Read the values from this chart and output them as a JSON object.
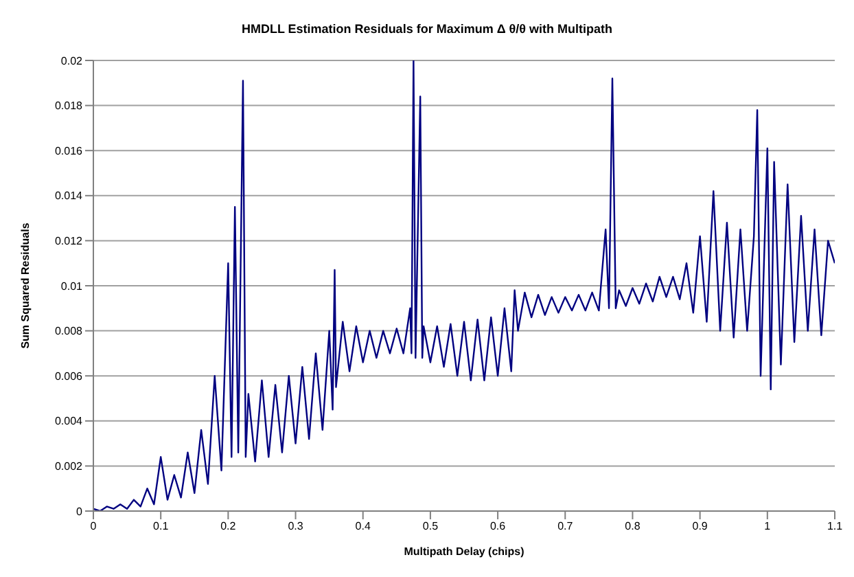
{
  "chart_data": {
    "type": "line",
    "title": "HMDLL Estimation Residuals for Maximum Δ θ/θ with Multipath",
    "xlabel": "Multipath Delay (chips)",
    "ylabel": "Sum Squared Residuals",
    "xlim": [
      0,
      1.1
    ],
    "xticks": [
      0,
      0.1,
      0.2,
      0.3,
      0.4,
      0.5,
      0.6,
      0.7,
      0.8,
      0.9,
      1,
      1.1
    ],
    "ylim": [
      0,
      0.02
    ],
    "yticks": [
      0,
      0.002,
      0.004,
      0.006,
      0.008,
      0.01,
      0.012,
      0.014,
      0.016,
      0.018,
      0.02
    ],
    "grid": "y",
    "marker": "none",
    "line_style": "solid",
    "series": [
      {
        "color": "#000080",
        "x": [
          0,
          0.01,
          0.02,
          0.03,
          0.04,
          0.05,
          0.06,
          0.07,
          0.08,
          0.09,
          0.1,
          0.11,
          0.12,
          0.13,
          0.14,
          0.15,
          0.16,
          0.17,
          0.18,
          0.19,
          0.2,
          0.205,
          0.21,
          0.215,
          0.222,
          0.226,
          0.23,
          0.24,
          0.25,
          0.26,
          0.27,
          0.28,
          0.29,
          0.3,
          0.31,
          0.32,
          0.33,
          0.34,
          0.35,
          0.355,
          0.358,
          0.36,
          0.37,
          0.38,
          0.39,
          0.4,
          0.41,
          0.42,
          0.43,
          0.44,
          0.45,
          0.46,
          0.47,
          0.472,
          0.475,
          0.478,
          0.485,
          0.488,
          0.49,
          0.5,
          0.51,
          0.52,
          0.53,
          0.54,
          0.55,
          0.56,
          0.57,
          0.58,
          0.59,
          0.6,
          0.61,
          0.62,
          0.625,
          0.63,
          0.64,
          0.65,
          0.66,
          0.67,
          0.68,
          0.69,
          0.7,
          0.71,
          0.72,
          0.73,
          0.74,
          0.75,
          0.76,
          0.765,
          0.77,
          0.775,
          0.78,
          0.79,
          0.8,
          0.81,
          0.82,
          0.83,
          0.84,
          0.85,
          0.86,
          0.87,
          0.88,
          0.89,
          0.9,
          0.91,
          0.92,
          0.93,
          0.94,
          0.95,
          0.96,
          0.97,
          0.98,
          0.985,
          0.99,
          1,
          1.005,
          1.01,
          1.02,
          1.03,
          1.04,
          1.05,
          1.06,
          1.07,
          1.08,
          1.09,
          1.1
        ],
        "values": [
          0.0001,
          0,
          0.0002,
          0.0001,
          0.0003,
          0.0001,
          0.0005,
          0.0002,
          0.001,
          0.0003,
          0.0024,
          0.0005,
          0.0016,
          0.0006,
          0.0026,
          0.0008,
          0.0036,
          0.0012,
          0.006,
          0.0018,
          0.011,
          0.0024,
          0.0135,
          0.0026,
          0.0191,
          0.0024,
          0.0052,
          0.0022,
          0.0058,
          0.0024,
          0.0056,
          0.0026,
          0.006,
          0.003,
          0.0064,
          0.0032,
          0.007,
          0.0036,
          0.008,
          0.0045,
          0.0107,
          0.0055,
          0.0084,
          0.0062,
          0.0082,
          0.0066,
          0.008,
          0.0068,
          0.008,
          0.007,
          0.0081,
          0.007,
          0.009,
          0.007,
          0.02,
          0.0068,
          0.0184,
          0.0068,
          0.0082,
          0.0066,
          0.0082,
          0.0064,
          0.0083,
          0.006,
          0.0084,
          0.0058,
          0.0085,
          0.0058,
          0.0086,
          0.006,
          0.009,
          0.0062,
          0.0098,
          0.008,
          0.0097,
          0.0086,
          0.0096,
          0.0087,
          0.0095,
          0.0088,
          0.0095,
          0.0089,
          0.0096,
          0.0089,
          0.0097,
          0.0089,
          0.0125,
          0.009,
          0.0192,
          0.009,
          0.0098,
          0.0091,
          0.0099,
          0.0092,
          0.0101,
          0.0093,
          0.0104,
          0.0095,
          0.0104,
          0.0094,
          0.011,
          0.0088,
          0.0122,
          0.0084,
          0.0142,
          0.008,
          0.0128,
          0.0077,
          0.0125,
          0.008,
          0.0122,
          0.0178,
          0.006,
          0.0161,
          0.0054,
          0.0155,
          0.0065,
          0.0145,
          0.0075,
          0.0131,
          0.008,
          0.0125,
          0.0078,
          0.012,
          0.011
        ]
      }
    ]
  }
}
